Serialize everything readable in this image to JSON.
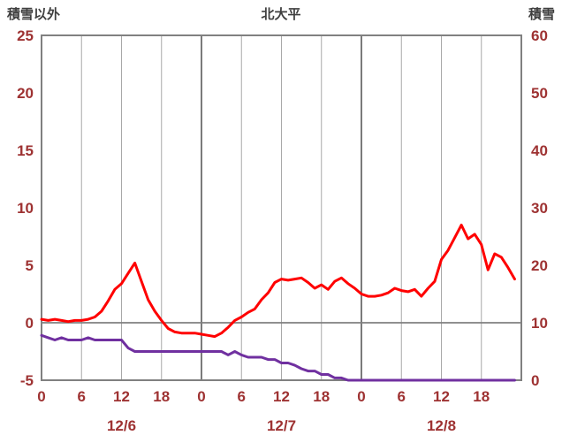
{
  "header": {},
  "colors": {
    "axis_label": "#9e3232",
    "title_text": "#3f3f3f",
    "grid": "#a8a8a8",
    "day_grid": "#5a5a5a",
    "border": "#808080",
    "zero_line": "#808080",
    "temperature_line": "#ff0000",
    "snow_line": "#7030a0",
    "background": "#ffffff"
  },
  "chart_data": {
    "type": "line",
    "title": "北大平",
    "left_axis": {
      "label": "積雪以外",
      "min": -5,
      "max": 25,
      "ticks": [
        25,
        20,
        15,
        10,
        5,
        0,
        -5
      ]
    },
    "right_axis": {
      "label": "積雪",
      "min": 0,
      "max": 60,
      "ticks": [
        60,
        50,
        40,
        30,
        20,
        10,
        0
      ]
    },
    "x_axis": {
      "min": 0,
      "max": 72,
      "unit": "hour",
      "tick_hours": [
        0,
        6,
        12,
        18,
        24,
        30,
        36,
        42,
        48,
        54,
        60,
        66
      ],
      "tick_labels": [
        "0",
        "6",
        "12",
        "18",
        "0",
        "6",
        "12",
        "18",
        "0",
        "6",
        "12",
        "18"
      ],
      "day_boundaries": [
        24,
        48
      ],
      "date_labels": [
        {
          "label": "12/6",
          "hour": 12
        },
        {
          "label": "12/7",
          "hour": 36
        },
        {
          "label": "12/8",
          "hour": 60
        }
      ]
    },
    "grid": {
      "horizontal": "zero-line-only",
      "vertical": "every-6-hours"
    },
    "legend": "none",
    "series": [
      {
        "name": "積雪以外",
        "axis": "left",
        "color": "#ff0000",
        "x_start": 0,
        "x_step": 1,
        "values": [
          0.3,
          0.2,
          0.3,
          0.2,
          0.1,
          0.2,
          0.2,
          0.3,
          0.5,
          1.0,
          1.9,
          2.9,
          3.4,
          4.3,
          5.2,
          3.6,
          2.0,
          1.0,
          0.2,
          -0.5,
          -0.8,
          -0.9,
          -0.9,
          -0.9,
          -1.0,
          -1.1,
          -1.2,
          -0.9,
          -0.4,
          0.2,
          0.5,
          0.9,
          1.2,
          2.0,
          2.6,
          3.5,
          3.8,
          3.7,
          3.8,
          3.9,
          3.5,
          3.0,
          3.3,
          2.9,
          3.6,
          3.9,
          3.4,
          3.0,
          2.5,
          2.3,
          2.3,
          2.4,
          2.6,
          3.0,
          2.8,
          2.7,
          2.9,
          2.3,
          3.0,
          3.6,
          5.5,
          6.3,
          7.4,
          8.5,
          7.3,
          7.7,
          6.8,
          4.6,
          6.0,
          5.7,
          4.8,
          3.8
        ]
      },
      {
        "name": "積雪",
        "axis": "right",
        "color": "#7030a0",
        "x_start": 0,
        "x_step": 1,
        "values": [
          7.8,
          7.4,
          7.0,
          7.4,
          7.0,
          7.0,
          7.0,
          7.4,
          7.0,
          7.0,
          7.0,
          7.0,
          7.0,
          5.6,
          5.0,
          5.0,
          5.0,
          5.0,
          5.0,
          5.0,
          5.0,
          5.0,
          5.0,
          5.0,
          5.0,
          5.0,
          5.0,
          5.0,
          4.4,
          5.0,
          4.4,
          4.0,
          4.0,
          4.0,
          3.6,
          3.6,
          3.0,
          3.0,
          2.6,
          2.0,
          1.6,
          1.6,
          1.0,
          1.0,
          0.4,
          0.4,
          0,
          0,
          0,
          0,
          0,
          0,
          0,
          0,
          0,
          0,
          0,
          0,
          0,
          0,
          0,
          0,
          0,
          0,
          0,
          0,
          0,
          0,
          0,
          0,
          0,
          0
        ]
      }
    ]
  }
}
